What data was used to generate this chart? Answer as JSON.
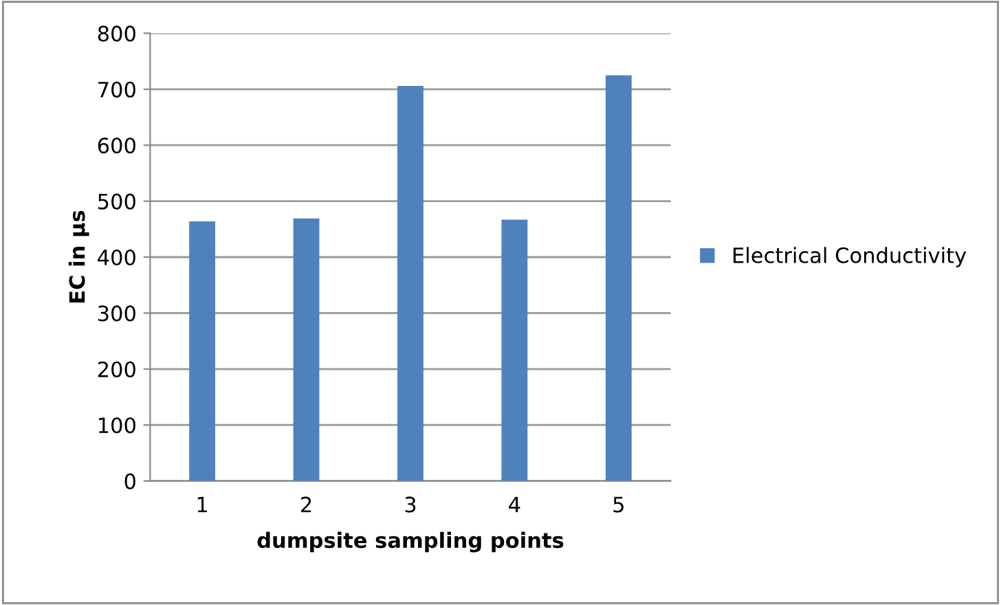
{
  "chart_data": {
    "type": "bar",
    "xlabel": "dumpsite sampling points",
    "ylabel": "EC in µs",
    "categories": [
      "1",
      "2",
      "3",
      "4",
      "5"
    ],
    "series": [
      {
        "name": "Electrical Conductivity",
        "color": "#4f81bd",
        "values": [
          464,
          469,
          706,
          467,
          725
        ]
      }
    ],
    "ylim": [
      0,
      800
    ],
    "yticks": [
      0,
      100,
      200,
      300,
      400,
      500,
      600,
      700,
      800
    ],
    "grid": "y",
    "legend": "right"
  }
}
